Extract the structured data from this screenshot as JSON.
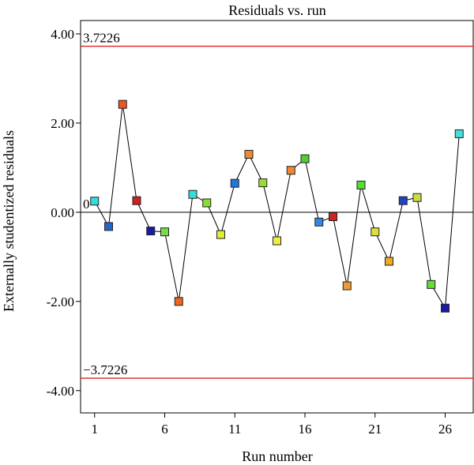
{
  "chart_data": {
    "type": "scatter",
    "title": "Residuals vs. run",
    "xlabel": "Run number",
    "ylabel": "Externally studentized residuals",
    "xlim": [
      0,
      28
    ],
    "ylim": [
      -4.5,
      4.3
    ],
    "xticks": [
      1,
      6,
      11,
      16,
      21,
      26
    ],
    "yticks": [
      4.0,
      2.0,
      0.0,
      -2.0,
      -4.0
    ],
    "ytick_labels": [
      "4.00",
      "2.00",
      "0.00",
      "-2.00",
      "-4.00"
    ],
    "limits": [
      {
        "value": 3.7226,
        "label": "3.7226",
        "color": "#e02020"
      },
      {
        "value": -3.7226,
        "label": "−3.7226",
        "color": "#e02020"
      }
    ],
    "zero_line": {
      "value": 0,
      "label": "0"
    },
    "grid": false,
    "series": [
      {
        "x": [
          1,
          2,
          3,
          4,
          5,
          6,
          7,
          8,
          9,
          10,
          11,
          12,
          13,
          14,
          15,
          16,
          17,
          18,
          19,
          20,
          21,
          22,
          23,
          24,
          25,
          26,
          27
        ],
        "values": [
          0.25,
          -0.32,
          2.42,
          0.26,
          -0.42,
          -0.44,
          -2.0,
          0.4,
          0.21,
          -0.5,
          0.65,
          1.3,
          0.66,
          -0.64,
          0.94,
          1.2,
          -0.22,
          -0.1,
          -1.65,
          0.61,
          -0.44,
          -1.1,
          0.26,
          0.33,
          -1.62,
          -2.15,
          1.76
        ],
        "colors": [
          "#33dddd",
          "#2266cc",
          "#ee5522",
          "#cc2222",
          "#1a1aaa",
          "#77dd44",
          "#ee6622",
          "#33dddd",
          "#88dd33",
          "#ddee33",
          "#2277dd",
          "#ee8833",
          "#99dd33",
          "#eeee44",
          "#ee8833",
          "#55cc33",
          "#3388dd",
          "#cc2222",
          "#ee9933",
          "#55dd33",
          "#dddd44",
          "#eeaa22",
          "#2244bb",
          "#ccdd44",
          "#66dd33",
          "#1a1aaa",
          "#44dddd"
        ]
      }
    ]
  }
}
